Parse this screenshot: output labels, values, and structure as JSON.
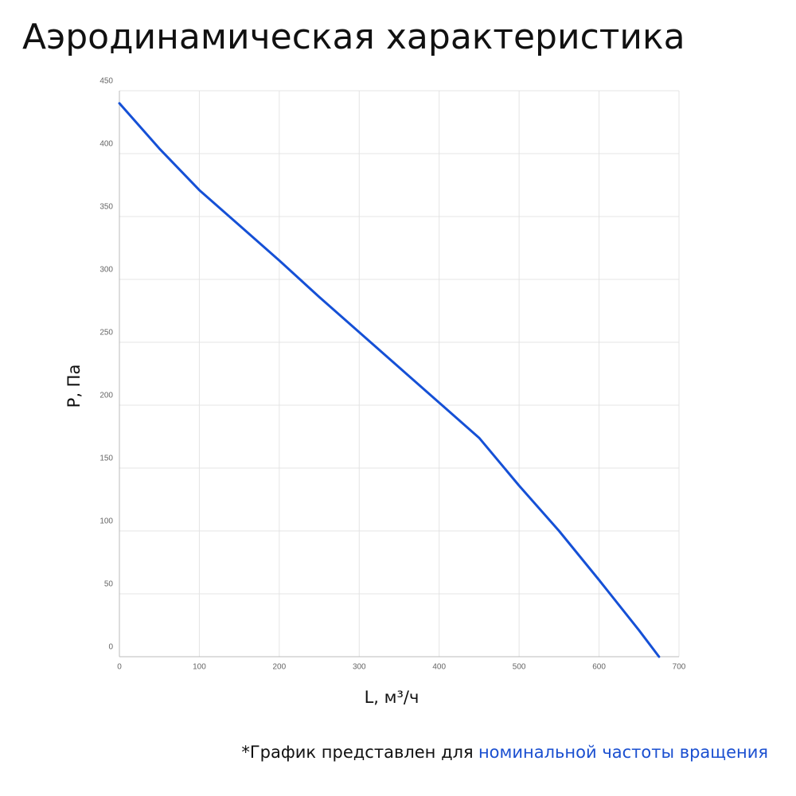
{
  "chart_data": {
    "type": "line",
    "title": "Аэродинамическая характеристика",
    "x_label": "L, м³/ч",
    "y_label": "P, Па",
    "x": [
      0,
      50,
      100,
      150,
      200,
      250,
      300,
      350,
      400,
      450,
      500,
      550,
      600,
      650,
      675
    ],
    "values": [
      440,
      404,
      371,
      343,
      315,
      286,
      258,
      230,
      202,
      174,
      136,
      100,
      61,
      21,
      0
    ],
    "color": "#1550d6",
    "xlim": [
      0,
      700
    ],
    "xticks": [
      0,
      100,
      200,
      300,
      400,
      500,
      600,
      700
    ],
    "ylim": [
      0,
      450
    ],
    "yticks": [
      0,
      50,
      100,
      150,
      200,
      250,
      300,
      350,
      400,
      450
    ],
    "grid": true
  },
  "note": {
    "text": "*График представлен для",
    "highlight": "номинальной частоты вращения"
  }
}
